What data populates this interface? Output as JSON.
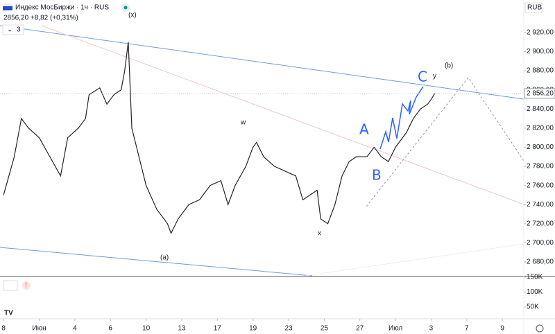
{
  "chart_data": {
    "type": "line",
    "title": "Индекс МосБиржи · 1ч · RUS",
    "subtitle": "2856,20 +8,82 (+0,31%)",
    "indicator_count": "3",
    "currency": "RUB",
    "last_price": {
      "value": 2856.2,
      "label": "2 856,20"
    },
    "color": "#222222",
    "x": [
      0,
      0.3,
      0.5,
      0.7,
      1.0,
      1.3,
      1.6,
      1.8,
      2.1,
      2.3,
      2.4,
      2.7,
      2.9,
      3.1,
      3.3,
      3.4,
      3.5,
      3.6,
      3.8,
      4.0,
      4.3,
      4.6,
      4.7,
      4.9,
      5.2,
      5.5,
      5.8,
      6.1,
      6.3,
      6.5,
      6.8,
      7.0,
      7.1,
      7.3,
      7.6,
      7.9,
      8.2,
      8.4,
      8.6,
      8.8,
      8.9,
      9.1,
      9.3,
      9.5,
      9.7,
      9.9,
      10.2,
      10.4,
      10.6,
      10.8,
      11.0,
      11.3,
      11.5,
      11.7,
      11.9,
      12.0,
      12.1
    ],
    "values": [
      2750,
      2790,
      2830,
      2820,
      2810,
      2790,
      2770,
      2810,
      2820,
      2830,
      2855,
      2862,
      2845,
      2855,
      2860,
      2880,
      2910,
      2820,
      2790,
      2760,
      2735,
      2720,
      2710,
      2725,
      2740,
      2745,
      2760,
      2765,
      2740,
      2760,
      2780,
      2800,
      2805,
      2790,
      2780,
      2775,
      2770,
      2745,
      2750,
      2755,
      2725,
      2720,
      2740,
      2770,
      2785,
      2790,
      2790,
      2800,
      2790,
      2785,
      2800,
      2815,
      2830,
      2840,
      2845,
      2850,
      2856.2
    ],
    "xlim": [
      -0.1,
      14.6
    ],
    "xticks": [
      {
        "value": 0,
        "label": "8"
      },
      {
        "value": 1,
        "label": "Июн"
      },
      {
        "value": 2,
        "label": "4"
      },
      {
        "value": 3,
        "label": "6"
      },
      {
        "value": 4,
        "label": "10"
      },
      {
        "value": 5,
        "label": "13"
      },
      {
        "value": 6,
        "label": "17"
      },
      {
        "value": 7,
        "label": "19"
      },
      {
        "value": 8,
        "label": "23"
      },
      {
        "value": 9,
        "label": "25"
      },
      {
        "value": 10,
        "label": "27"
      },
      {
        "value": 11,
        "label": "Июл"
      },
      {
        "value": 12,
        "label": "3"
      },
      {
        "value": 13,
        "label": "7"
      },
      {
        "value": 14,
        "label": "9"
      }
    ],
    "ylim": [
      2665.5,
      2954
    ],
    "yticks": [
      {
        "value": 2680,
        "label": "2 680,00"
      },
      {
        "value": 2700,
        "label": "2 700,00"
      },
      {
        "value": 2720,
        "label": "2 720,00"
      },
      {
        "value": 2740,
        "label": "2 740,00"
      },
      {
        "value": 2760,
        "label": "2 760,00"
      },
      {
        "value": 2780,
        "label": "2 780,00"
      },
      {
        "value": 2800,
        "label": "2 800,00"
      },
      {
        "value": 2820,
        "label": "2 820,00"
      },
      {
        "value": 2840,
        "label": "2 840,00"
      },
      {
        "value": 2860,
        "label": "2 860,00"
      },
      {
        "value": 2880,
        "label": "2 880,00"
      },
      {
        "value": 2900,
        "label": "2 900,00"
      },
      {
        "value": 2920,
        "label": "2 920,00"
      }
    ],
    "volume_yticks": [
      {
        "value": 150000,
        "label": "150K"
      },
      {
        "value": 100000,
        "label": "100K"
      },
      {
        "value": 50000,
        "label": "50K"
      }
    ],
    "annotations": [
      "(x)",
      "(b)",
      "y",
      "w",
      "(a)",
      "x",
      "A",
      "B",
      "C"
    ]
  }
}
